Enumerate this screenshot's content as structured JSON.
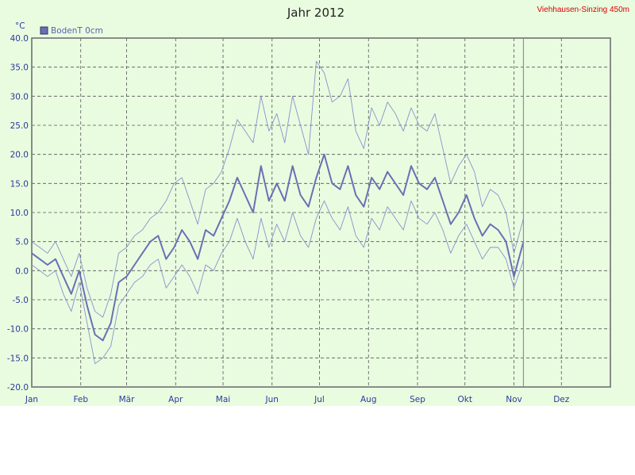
{
  "chart_data": {
    "type": "line",
    "title": "Jahr 2012",
    "station": "Viehhausen-Sinzing 450m",
    "unit": "°C",
    "ylim": [
      -20,
      40
    ],
    "ytick_labels": [
      "40.0",
      "35.0",
      "30.0",
      "25.0",
      "20.0",
      "15.0",
      "10.0",
      "5.0",
      "0.0",
      "-5.0",
      "-10.0",
      "-15.0",
      "-20.0"
    ],
    "ytick_values": [
      40,
      35,
      30,
      25,
      20,
      15,
      10,
      5,
      0,
      -5,
      -10,
      -15,
      -20
    ],
    "month_labels": [
      "Jan",
      "Feb",
      "Mär",
      "Apr",
      "Mai",
      "Jun",
      "Jul",
      "Aug",
      "Sep",
      "Okt",
      "Nov",
      "Dez"
    ],
    "month_start_days": [
      0,
      31,
      60,
      91,
      121,
      152,
      182,
      213,
      244,
      274,
      305,
      335
    ],
    "year_days": 366,
    "grid": true,
    "legend_position": "top-left",
    "current_day_marker": 311,
    "series": [
      {
        "name": "BodenT 0cm",
        "role": "mean",
        "x": [
          0,
          5,
          10,
          15,
          20,
          25,
          30,
          35,
          40,
          45,
          50,
          55,
          60,
          65,
          70,
          75,
          80,
          85,
          90,
          95,
          100,
          105,
          110,
          115,
          120,
          125,
          130,
          135,
          140,
          145,
          150,
          155,
          160,
          165,
          170,
          175,
          180,
          185,
          190,
          195,
          200,
          205,
          210,
          215,
          220,
          225,
          230,
          235,
          240,
          245,
          250,
          255,
          260,
          265,
          270,
          275,
          280,
          285,
          290,
          295,
          300,
          305,
          310,
          311
        ],
        "values": [
          3,
          2,
          1,
          2,
          -1,
          -4,
          0,
          -6,
          -11,
          -12,
          -9,
          -2,
          -1,
          1,
          3,
          5,
          6,
          2,
          4,
          7,
          5,
          2,
          7,
          6,
          9,
          12,
          16,
          13,
          10,
          18,
          12,
          15,
          12,
          18,
          13,
          11,
          16,
          20,
          15,
          14,
          18,
          13,
          11,
          16,
          14,
          17,
          15,
          13,
          18,
          15,
          14,
          16,
          12,
          8,
          10,
          13,
          9,
          6,
          8,
          7,
          5,
          -1,
          4,
          5
        ]
      },
      {
        "name": "",
        "role": "max",
        "x": [
          0,
          5,
          10,
          15,
          20,
          25,
          30,
          35,
          40,
          45,
          50,
          55,
          60,
          65,
          70,
          75,
          80,
          85,
          90,
          95,
          100,
          105,
          110,
          115,
          120,
          125,
          130,
          135,
          140,
          145,
          150,
          155,
          160,
          165,
          170,
          175,
          180,
          185,
          190,
          195,
          200,
          205,
          210,
          215,
          220,
          225,
          230,
          235,
          240,
          245,
          250,
          255,
          260,
          265,
          270,
          275,
          280,
          285,
          290,
          295,
          300,
          305,
          310,
          311
        ],
        "values": [
          5,
          4,
          3,
          5,
          2,
          -1,
          3,
          -3,
          -7,
          -8,
          -4,
          3,
          4,
          6,
          7,
          9,
          10,
          12,
          15,
          16,
          12,
          8,
          14,
          15,
          17,
          21,
          26,
          24,
          22,
          30,
          24,
          27,
          22,
          30,
          25,
          20,
          36,
          34,
          29,
          30,
          33,
          24,
          21,
          28,
          25,
          29,
          27,
          24,
          28,
          25,
          24,
          27,
          21,
          15,
          18,
          20,
          17,
          11,
          14,
          13,
          10,
          3,
          8,
          9
        ]
      },
      {
        "name": "",
        "role": "min",
        "x": [
          0,
          5,
          10,
          15,
          20,
          25,
          30,
          35,
          40,
          45,
          50,
          55,
          60,
          65,
          70,
          75,
          80,
          85,
          90,
          95,
          100,
          105,
          110,
          115,
          120,
          125,
          130,
          135,
          140,
          145,
          150,
          155,
          160,
          165,
          170,
          175,
          180,
          185,
          190,
          195,
          200,
          205,
          210,
          215,
          220,
          225,
          230,
          235,
          240,
          245,
          250,
          255,
          260,
          265,
          270,
          275,
          280,
          285,
          290,
          295,
          300,
          305,
          310,
          311
        ],
        "values": [
          1,
          0,
          -1,
          0,
          -4,
          -7,
          -2,
          -9,
          -16,
          -15,
          -13,
          -6,
          -4,
          -2,
          -1,
          1,
          2,
          -3,
          -1,
          1,
          -1,
          -4,
          1,
          0,
          3,
          5,
          9,
          5,
          2,
          9,
          4,
          8,
          5,
          10,
          6,
          4,
          9,
          12,
          9,
          7,
          11,
          6,
          4,
          9,
          7,
          11,
          9,
          7,
          12,
          9,
          8,
          10,
          7,
          3,
          6,
          8,
          5,
          2,
          4,
          4,
          2,
          -3,
          1,
          2
        ]
      }
    ]
  }
}
